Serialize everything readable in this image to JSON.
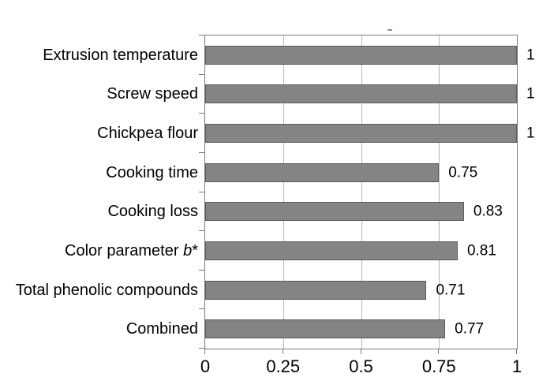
{
  "figure": {
    "background": "#ffffff"
  },
  "chart_data": {
    "type": "bar",
    "orientation": "horizontal",
    "title": "",
    "xlabel": "",
    "ylabel": "",
    "categories": [
      "Extrusion temperature",
      "Screw speed",
      "Chickpea flour",
      "Cooking time",
      "Cooking loss",
      "Color parameter b*",
      "Total phenolic compounds",
      "Combined"
    ],
    "categories_rich": [
      [
        {
          "t": "Extrusion temperature",
          "i": false
        }
      ],
      [
        {
          "t": "Screw speed",
          "i": false
        }
      ],
      [
        {
          "t": "Chickpea flour",
          "i": false
        }
      ],
      [
        {
          "t": "Cooking time",
          "i": false
        }
      ],
      [
        {
          "t": "Cooking loss",
          "i": false
        }
      ],
      [
        {
          "t": "Color parameter ",
          "i": false
        },
        {
          "t": "b",
          "i": true
        },
        {
          "t": "*",
          "i": false
        }
      ],
      [
        {
          "t": "Total phenolic compounds",
          "i": false
        }
      ],
      [
        {
          "t": "Combined",
          "i": false
        }
      ]
    ],
    "values": [
      1,
      1,
      1,
      0.75,
      0.83,
      0.81,
      0.71,
      0.77
    ],
    "value_labels": [
      "1",
      "1",
      "1",
      "0.75",
      "0.83",
      "0.81",
      "0.71",
      "0.77"
    ],
    "xlim": [
      0,
      1
    ],
    "x_ticks": [
      0,
      0.25,
      0.5,
      0.75,
      1
    ],
    "x_tick_labels": [
      "0",
      "0.25",
      "0.5",
      "0.75",
      "1"
    ],
    "grid": "vertical gridlines at 0.25, 0.5 and 0.75",
    "legend": "none",
    "colors": {
      "bar_fill": "#848484",
      "bar_border": "#5a5a5a",
      "gridline": "#b5b5b5",
      "axis": "#7a7a7a",
      "text": "#000000",
      "background": "#ffffff"
    }
  }
}
